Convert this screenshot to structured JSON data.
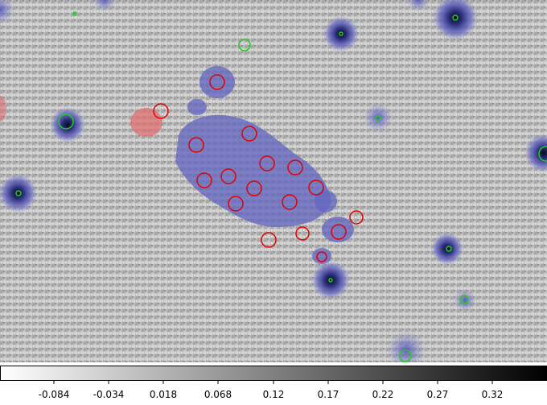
{
  "image": {
    "description_colormap": "gray_r",
    "overlay_color_blue": "#3d3fb0",
    "overlay_color_red": "#e05050",
    "marker_color_red": "#e00000",
    "marker_color_green": "#22cc22"
  },
  "colorbar": {
    "ticks": [
      "-0.084",
      "-0.034",
      "0.018",
      "0.068",
      "0.12",
      "0.17",
      "0.22",
      "0.27",
      "0.32"
    ]
  }
}
